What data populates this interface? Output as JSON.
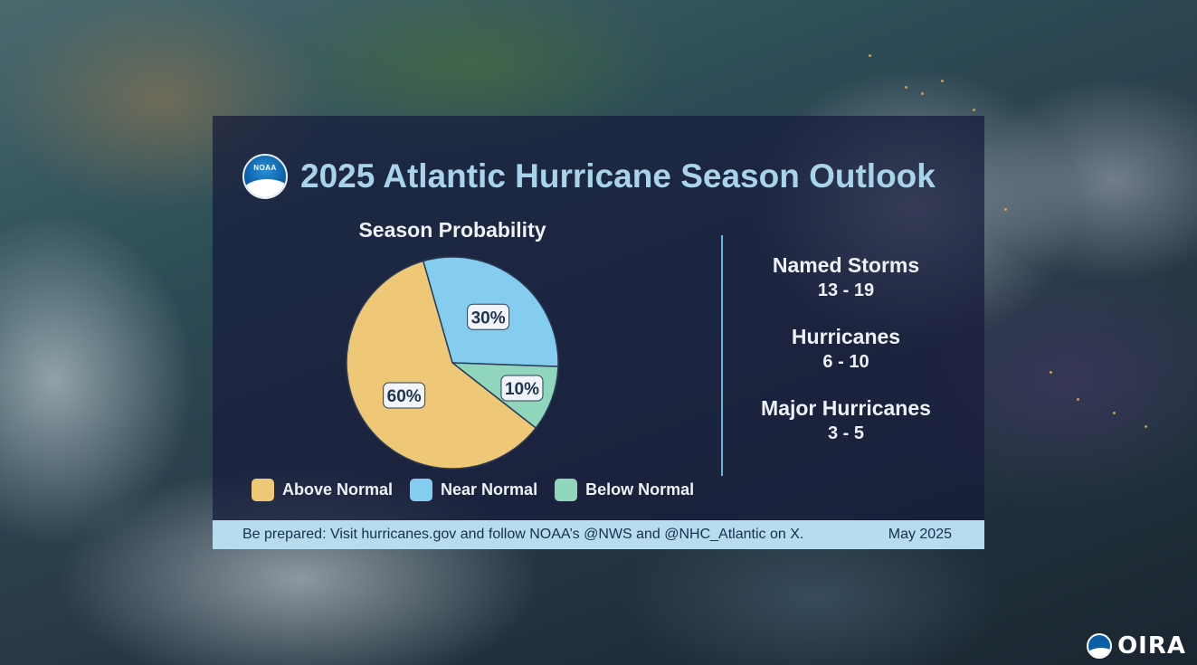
{
  "header": {
    "title": "2025 Atlantic Hurricane Season Outlook",
    "logo_text": "NOAA"
  },
  "chart_data": {
    "type": "pie",
    "title": "Season Probability",
    "categories": [
      "Above Normal",
      "Near Normal",
      "Below Normal"
    ],
    "values": [
      60,
      30,
      10
    ],
    "value_labels": [
      "60%",
      "30%",
      "10%"
    ],
    "colors": [
      "#eec877",
      "#84cdee",
      "#8fd6bd"
    ],
    "legend_position": "bottom"
  },
  "stats": [
    {
      "label": "Named Storms",
      "value": "13 - 19"
    },
    {
      "label": "Hurricanes",
      "value": "6 - 10"
    },
    {
      "label": "Major Hurricanes",
      "value": "3 - 5"
    }
  ],
  "footer": {
    "text": "Be prepared: Visit hurricanes.gov and follow NOAA’s @NWS and @NHC_Atlantic on X.",
    "date": "May 2025"
  },
  "corner": {
    "oira_text": "OIRA"
  },
  "colors": {
    "title": "#a9d3ea",
    "panel": "#161a3a",
    "footer_bg": "#b6dcee",
    "divider": "#5fb8e6"
  }
}
